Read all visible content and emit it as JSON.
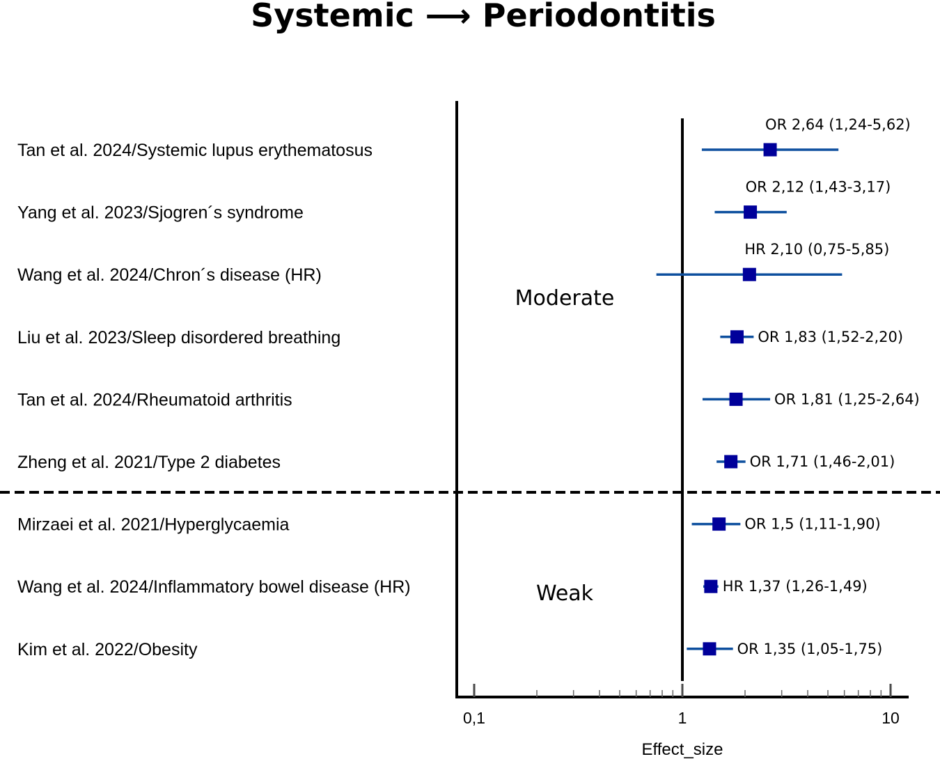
{
  "chart_data": {
    "type": "forest",
    "title": "Systemic ⟶ Periodontitis",
    "xlabel": "Effect_size",
    "x_scale": "log",
    "xlim": [
      0.08,
      12
    ],
    "x_ticks": [
      {
        "value": 0.1,
        "label": "0,1"
      },
      {
        "value": 1,
        "label": "1"
      },
      {
        "value": 10,
        "label": "10"
      }
    ],
    "reference_line": 1,
    "zones": [
      {
        "label": "Moderate",
        "rows": [
          0,
          5
        ]
      },
      {
        "label": "Weak",
        "rows": [
          6,
          8
        ]
      }
    ],
    "studies": [
      {
        "label": "Tan et al. 2024/Systemic lupus erythematosus",
        "estimate": 2.64,
        "lower": 1.24,
        "upper": 5.62,
        "text": "OR 2,64 (1,24-5,62)"
      },
      {
        "label": "Yang et al. 2023/Sjogren´s syndrome",
        "estimate": 2.12,
        "lower": 1.43,
        "upper": 3.17,
        "text": "OR 2,12 (1,43-3,17)"
      },
      {
        "label": "Wang et al. 2024/Chron´s disease (HR)",
        "estimate": 2.1,
        "lower": 0.75,
        "upper": 5.85,
        "text": "HR 2,10 (0,75-5,85)"
      },
      {
        "label": "Liu et al. 2023/Sleep disordered breathing",
        "estimate": 1.83,
        "lower": 1.52,
        "upper": 2.2,
        "text": "OR 1,83 (1,52-2,20)"
      },
      {
        "label": "Tan et al. 2024/Rheumatoid arthritis",
        "estimate": 1.81,
        "lower": 1.25,
        "upper": 2.64,
        "text": "OR 1,81 (1,25-2,64)"
      },
      {
        "label": "Zheng et al. 2021/Type 2 diabetes",
        "estimate": 1.71,
        "lower": 1.46,
        "upper": 2.01,
        "text": "OR 1,71 (1,46-2,01)"
      },
      {
        "label": "Mirzaei et al. 2021/Hyperglycaemia",
        "estimate": 1.5,
        "lower": 1.11,
        "upper": 1.9,
        "text": "OR 1,5 (1,11-1,90)"
      },
      {
        "label": "Wang et al. 2024/Inflammatory bowel disease (HR)",
        "estimate": 1.37,
        "lower": 1.26,
        "upper": 1.49,
        "text": "HR 1,37 (1,26-1,49)"
      },
      {
        "label": "Kim et al. 2022/Obesity",
        "estimate": 1.35,
        "lower": 1.05,
        "upper": 1.75,
        "text": "OR 1,35 (1,05-1,75)"
      }
    ],
    "colors": {
      "ci_line": "#0d4f9e",
      "marker": "#00009a",
      "axis": "#000000"
    }
  }
}
